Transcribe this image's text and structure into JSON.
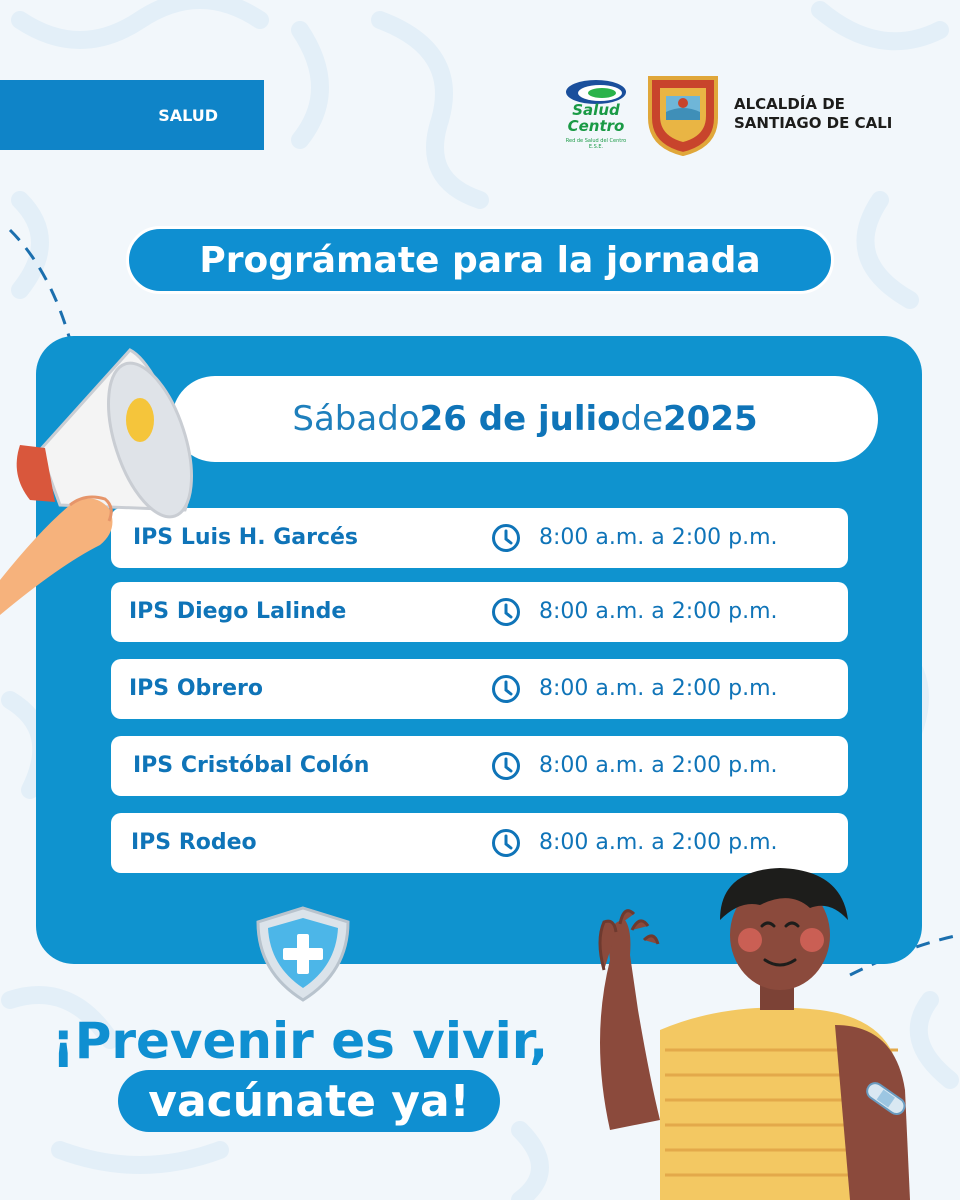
{
  "tag": {
    "label": "SALUD"
  },
  "logos": {
    "salud_centro": {
      "line1": "Salud",
      "line2": "Centro",
      "subtitle": "Red de Salud del Centro E.S.E."
    },
    "alcaldia": {
      "line1": "ALCALDÍA DE",
      "line2": "SANTIAGO DE CALI"
    }
  },
  "headline": "Prográmate para la jornada",
  "date": {
    "weekday": "Sábado",
    "day_month": "26 de julio",
    "connector": "de",
    "year": "2025"
  },
  "schedule": [
    {
      "site": "IPS Luis H. Garcés",
      "hours": "8:00 a.m. a 2:00 p.m."
    },
    {
      "site": "IPS Diego Lalinde",
      "hours": "8:00 a.m. a 2:00 p.m."
    },
    {
      "site": "IPS Obrero",
      "hours": "8:00 a.m. a 2:00 p.m."
    },
    {
      "site": "IPS Cristóbal Colón",
      "hours": "8:00 a.m. a 2:00 p.m."
    },
    {
      "site": "IPS Rodeo",
      "hours": "8:00 a.m. a 2:00 p.m."
    }
  ],
  "slogan": {
    "line1": "¡Prevenir es vivir,",
    "line2": "vacúnate ya!"
  },
  "colors": {
    "primary_blue": "#0f8fd1",
    "text_blue": "#0f74b8",
    "background": "#f2f7fb",
    "salud_green": "#1a9a45"
  },
  "icons": [
    "clock-icon",
    "shield-plus-icon",
    "megaphone-icon",
    "bandage-icon"
  ]
}
